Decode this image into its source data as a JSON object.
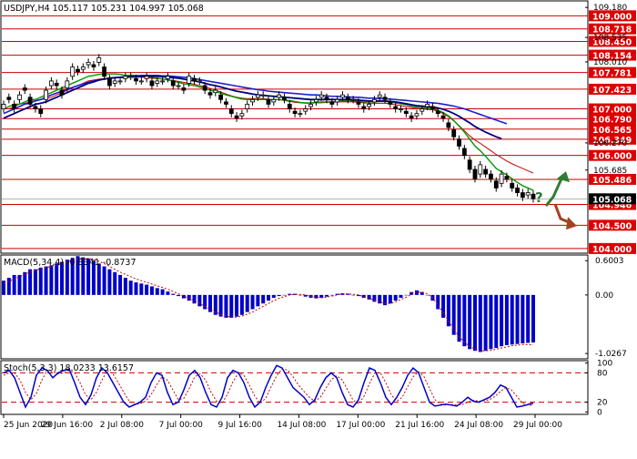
{
  "chart_data": {
    "type": "candlestick",
    "symbol_line": "USDJPY,H4  105.117 105.231 104.997 105.068",
    "main": {
      "ylim": [
        103.9,
        109.3
      ],
      "current_price": 105.068,
      "current_price_label": "105.068",
      "levels": [
        109.0,
        108.718,
        108.45,
        108.154,
        107.781,
        107.423,
        107.0,
        106.79,
        106.565,
        106.349,
        106.0,
        105.486,
        104.946,
        104.5,
        104.0
      ],
      "level_labels": [
        "109.000",
        "108.718",
        "108.450",
        "108.154",
        "107.781",
        "107.423",
        "107.000",
        "106.790",
        "106.565",
        "106.349",
        "106.000",
        "105.486",
        "104.946",
        "104.500",
        "104.000"
      ],
      "tick_values": [
        109.18,
        108.535,
        108.01,
        106.27,
        105.685
      ],
      "tick_labels": [
        "109.180",
        "108.535",
        "108.010",
        "106.270",
        "105.685"
      ],
      "close": [
        107.1,
        107.2,
        107.0,
        107.3,
        107.4,
        107.1,
        107.0,
        106.9,
        107.4,
        107.6,
        107.5,
        107.3,
        107.6,
        107.9,
        107.8,
        107.9,
        108.0,
        107.9,
        108.1,
        107.7,
        107.5,
        107.6,
        107.6,
        107.7,
        107.7,
        107.6,
        107.6,
        107.7,
        107.5,
        107.6,
        107.6,
        107.7,
        107.5,
        107.5,
        107.4,
        107.7,
        107.6,
        107.6,
        107.4,
        107.3,
        107.4,
        107.2,
        107.1,
        106.9,
        106.8,
        106.9,
        107.1,
        107.2,
        107.3,
        107.3,
        107.1,
        107.2,
        107.3,
        107.2,
        107.0,
        106.9,
        106.9,
        107.0,
        107.1,
        107.2,
        107.3,
        107.2,
        107.1,
        107.2,
        107.3,
        107.2,
        107.2,
        107.1,
        107.0,
        107.1,
        107.2,
        107.3,
        107.2,
        107.1,
        107.0,
        107.0,
        106.9,
        106.8,
        106.9,
        107.0,
        107.1,
        107.0,
        106.9,
        106.8,
        106.6,
        106.4,
        106.2,
        106.0,
        105.7,
        105.5,
        105.8,
        105.6,
        105.5,
        105.3,
        105.6,
        105.5,
        105.3,
        105.2,
        105.1,
        105.2,
        105.068
      ],
      "open_offsets": [
        -0.1,
        0.05,
        0.1,
        -0.1,
        0.05,
        0.15,
        0.05,
        0.1,
        -0.2,
        -0.1,
        0.05,
        0.1,
        -0.15,
        -0.2,
        0.05,
        -0.05,
        -0.05,
        0.05,
        -0.1,
        0.2,
        0.15,
        -0.05,
        0.0,
        -0.05,
        0.0,
        0.05,
        0.0,
        -0.05,
        0.1,
        -0.05,
        0.0,
        -0.05,
        0.1,
        0.0,
        0.05,
        -0.15,
        0.05,
        0.0,
        0.1,
        0.05,
        -0.05,
        0.1,
        0.05,
        0.1,
        0.05,
        -0.05,
        -0.1,
        -0.05,
        -0.05,
        0.0,
        0.1,
        -0.05,
        -0.05,
        0.05,
        0.1,
        0.05,
        0.0,
        -0.05,
        -0.05,
        -0.05,
        -0.05,
        0.05,
        0.05,
        -0.05,
        -0.05,
        0.05,
        0.0,
        0.05,
        0.05,
        -0.05,
        -0.05,
        -0.05,
        0.05,
        0.05,
        0.05,
        0.0,
        0.05,
        0.05,
        -0.05,
        -0.05,
        -0.05,
        0.05,
        0.05,
        0.05,
        0.1,
        0.15,
        0.15,
        0.15,
        0.2,
        0.2,
        -0.2,
        0.1,
        0.1,
        0.15,
        -0.2,
        0.05,
        0.1,
        0.1,
        0.1,
        -0.05,
        0.1
      ],
      "ma_fast": [
        107.0,
        107.05,
        107.1,
        107.1,
        107.15,
        107.2,
        107.2,
        107.25,
        107.3,
        107.35,
        107.4,
        107.45,
        107.5,
        107.55,
        107.6,
        107.65,
        107.7,
        107.72,
        107.74,
        107.75,
        107.75,
        107.75,
        107.74,
        107.72,
        107.72,
        107.72,
        107.71,
        107.7,
        107.68,
        107.66,
        107.64,
        107.62,
        107.6,
        107.57,
        107.54,
        107.52,
        107.5,
        107.47,
        107.44,
        107.4,
        107.37,
        107.34,
        107.3,
        107.27,
        107.24,
        107.21,
        107.2,
        107.2,
        107.2,
        107.2,
        107.2,
        107.2,
        107.2,
        107.19,
        107.18,
        107.16,
        107.14,
        107.13,
        107.13,
        107.14,
        107.15,
        107.15,
        107.15,
        107.16,
        107.17,
        107.17,
        107.17,
        107.16,
        107.15,
        107.15,
        107.15,
        107.16,
        107.16,
        107.15,
        107.13,
        107.11,
        107.09,
        107.06,
        107.04,
        107.03,
        107.02,
        107.0,
        106.97,
        106.92,
        106.85,
        106.75,
        106.63,
        106.5,
        106.35,
        106.2,
        106.1,
        105.98,
        105.85,
        105.72,
        105.65,
        105.58,
        105.5,
        105.42,
        105.35,
        105.3,
        105.25
      ],
      "ma_mid": [
        106.8,
        106.85,
        106.9,
        106.95,
        107.0,
        107.05,
        107.1,
        107.12,
        107.15,
        107.2,
        107.25,
        107.3,
        107.35,
        107.4,
        107.45,
        107.5,
        107.55,
        107.58,
        107.62,
        107.64,
        107.66,
        107.67,
        107.68,
        107.68,
        107.69,
        107.69,
        107.7,
        107.7,
        107.7,
        107.7,
        107.69,
        107.68,
        107.67,
        107.66,
        107.64,
        107.62,
        107.6,
        107.58,
        107.55,
        107.52,
        107.5,
        107.47,
        107.44,
        107.41,
        107.38,
        107.36,
        107.34,
        107.32,
        107.3,
        107.29,
        107.28,
        107.27,
        107.26,
        107.25,
        107.24,
        107.23,
        107.22,
        107.21,
        107.2,
        107.2,
        107.2,
        107.2,
        107.2,
        107.2,
        107.2,
        107.2,
        107.2,
        107.19,
        107.18,
        107.17,
        107.17,
        107.17,
        107.17,
        107.16,
        107.15,
        107.13,
        107.11,
        107.09,
        107.07,
        107.06,
        107.05,
        107.04,
        107.02,
        106.99,
        106.95,
        106.9,
        106.84,
        106.77,
        106.7,
        106.62,
        106.56,
        106.5,
        106.45,
        106.4,
        106.36
      ],
      "ma_slow": [
        106.9,
        106.95,
        107.0,
        107.05,
        107.1,
        107.13,
        107.17,
        107.2,
        107.25,
        107.3,
        107.34,
        107.38,
        107.42,
        107.46,
        107.5,
        107.54,
        107.57,
        107.6,
        107.62,
        107.64,
        107.66,
        107.67,
        107.68,
        107.69,
        107.7,
        107.71,
        107.72,
        107.72,
        107.72,
        107.72,
        107.71,
        107.71,
        107.7,
        107.69,
        107.68,
        107.67,
        107.65,
        107.63,
        107.61,
        107.59,
        107.57,
        107.55,
        107.53,
        107.51,
        107.49,
        107.47,
        107.45,
        107.43,
        107.41,
        107.4,
        107.38,
        107.37,
        107.36,
        107.35,
        107.34,
        107.33,
        107.32,
        107.31,
        107.3,
        107.3,
        107.29,
        107.28,
        107.27,
        107.27,
        107.26,
        107.26,
        107.25,
        107.25,
        107.24,
        107.23,
        107.23,
        107.22,
        107.22,
        107.21,
        107.2,
        107.19,
        107.18,
        107.17,
        107.16,
        107.15,
        107.14,
        107.13,
        107.12,
        107.1,
        107.08,
        107.06,
        107.03,
        107.0,
        106.96,
        106.92,
        106.88,
        106.84,
        106.8,
        106.76,
        106.72,
        106.68
      ],
      "ma_red": [
        107.0,
        107.0,
        107.05,
        107.1,
        107.12,
        107.15,
        107.18,
        107.2,
        107.22,
        107.25,
        107.3,
        107.35,
        107.4,
        107.45,
        107.5,
        107.55,
        107.6,
        107.62,
        107.64,
        107.65,
        107.66,
        107.66,
        107.67,
        107.67,
        107.68,
        107.68,
        107.68,
        107.67,
        107.66,
        107.65,
        107.64,
        107.63,
        107.61,
        107.59,
        107.57,
        107.55,
        107.53,
        107.5,
        107.47,
        107.44,
        107.4,
        107.36,
        107.32,
        107.28,
        107.25,
        107.23,
        107.22,
        107.22,
        107.22,
        107.22,
        107.21,
        107.2,
        107.2,
        107.18,
        107.16,
        107.14,
        107.13,
        107.12,
        107.12,
        107.13,
        107.13,
        107.14,
        107.14,
        107.15,
        107.15,
        107.15,
        107.15,
        107.14,
        107.13,
        107.12,
        107.12,
        107.12,
        107.12,
        107.11,
        107.09,
        107.07,
        107.05,
        107.03,
        107.01,
        107.0,
        106.99,
        106.98,
        106.95,
        106.9,
        106.83,
        106.74,
        106.64,
        106.53,
        106.42,
        106.33,
        106.26,
        106.18,
        106.1,
        106.02,
        105.95,
        105.88,
        105.82,
        105.77,
        105.72,
        105.67,
        105.62
      ]
    },
    "macd": {
      "label": "MACD(5,34,4) -0.8341 -0.8737",
      "ylim": [
        -1.12,
        0.7
      ],
      "tick_values": [
        0.6003,
        0.0,
        -1.0267
      ],
      "tick_labels": [
        "0.6003",
        "0.00",
        "-1.0267"
      ],
      "hist": [
        0.25,
        0.3,
        0.35,
        0.35,
        0.4,
        0.45,
        0.45,
        0.48,
        0.5,
        0.52,
        0.55,
        0.58,
        0.62,
        0.65,
        0.68,
        0.66,
        0.64,
        0.6,
        0.55,
        0.5,
        0.45,
        0.4,
        0.35,
        0.3,
        0.25,
        0.22,
        0.2,
        0.18,
        0.15,
        0.12,
        0.1,
        0.06,
        0.02,
        -0.02,
        -0.06,
        -0.1,
        -0.15,
        -0.2,
        -0.25,
        -0.3,
        -0.35,
        -0.38,
        -0.4,
        -0.4,
        -0.38,
        -0.35,
        -0.3,
        -0.25,
        -0.2,
        -0.15,
        -0.1,
        -0.05,
        -0.02,
        0.0,
        0.02,
        0.02,
        0.0,
        -0.03,
        -0.05,
        -0.06,
        -0.05,
        -0.03,
        0.0,
        0.02,
        0.03,
        0.02,
        0.0,
        -0.02,
        -0.05,
        -0.08,
        -0.12,
        -0.15,
        -0.18,
        -0.15,
        -0.1,
        -0.05,
        0.0,
        0.05,
        0.08,
        0.05,
        0.0,
        -0.1,
        -0.25,
        -0.4,
        -0.55,
        -0.7,
        -0.82,
        -0.9,
        -0.95,
        -0.98,
        -1.0,
        -0.98,
        -0.95,
        -0.93,
        -0.9,
        -0.88,
        -0.87,
        -0.86,
        -0.85,
        -0.84,
        -0.8341
      ],
      "signal": [
        0.2,
        0.24,
        0.28,
        0.32,
        0.36,
        0.4,
        0.43,
        0.46,
        0.48,
        0.5,
        0.52,
        0.55,
        0.58,
        0.61,
        0.63,
        0.64,
        0.64,
        0.62,
        0.59,
        0.55,
        0.5,
        0.45,
        0.4,
        0.36,
        0.32,
        0.28,
        0.25,
        0.22,
        0.19,
        0.16,
        0.13,
        0.1,
        0.06,
        0.02,
        -0.02,
        -0.06,
        -0.1,
        -0.15,
        -0.2,
        -0.25,
        -0.3,
        -0.34,
        -0.37,
        -0.39,
        -0.39,
        -0.37,
        -0.34,
        -0.3,
        -0.25,
        -0.2,
        -0.15,
        -0.1,
        -0.06,
        -0.03,
        0.0,
        0.01,
        0.01,
        0.0,
        -0.02,
        -0.04,
        -0.05,
        -0.04,
        -0.02,
        0.0,
        0.02,
        0.02,
        0.01,
        0.0,
        -0.03,
        -0.06,
        -0.09,
        -0.12,
        -0.15,
        -0.15,
        -0.12,
        -0.08,
        -0.04,
        0.01,
        0.05,
        0.05,
        0.02,
        -0.05,
        -0.17,
        -0.31,
        -0.46,
        -0.6,
        -0.73,
        -0.83,
        -0.9,
        -0.95,
        -0.98,
        -0.98,
        -0.97,
        -0.95,
        -0.93,
        -0.91,
        -0.89,
        -0.88,
        -0.87,
        -0.87,
        -0.8737
      ]
    },
    "stoch": {
      "label": "Stoch(5,3,3) 18.0233 13.6157",
      "ylim": [
        -5,
        105
      ],
      "tick_values": [
        100,
        80,
        20,
        0
      ],
      "tick_labels": [
        "100",
        "80",
        "20",
        "0"
      ],
      "dashed_levels": [
        80,
        20
      ],
      "k": [
        80,
        85,
        70,
        40,
        10,
        30,
        75,
        90,
        85,
        70,
        80,
        85,
        88,
        60,
        30,
        15,
        35,
        70,
        90,
        80,
        60,
        40,
        20,
        10,
        15,
        20,
        30,
        60,
        80,
        75,
        40,
        15,
        20,
        45,
        75,
        85,
        70,
        40,
        15,
        10,
        30,
        70,
        85,
        80,
        60,
        30,
        10,
        20,
        50,
        75,
        95,
        90,
        70,
        50,
        40,
        30,
        15,
        25,
        50,
        70,
        80,
        70,
        40,
        15,
        10,
        25,
        60,
        90,
        85,
        60,
        30,
        15,
        30,
        50,
        75,
        90,
        80,
        50,
        20,
        12,
        14,
        16,
        14,
        12,
        20,
        30,
        22,
        20,
        25,
        30,
        40,
        55,
        50,
        30,
        10,
        12,
        15,
        18.0233
      ],
      "d": [
        75,
        80,
        80,
        65,
        40,
        25,
        38,
        65,
        85,
        82,
        78,
        80,
        85,
        80,
        60,
        35,
        25,
        40,
        65,
        85,
        78,
        60,
        40,
        22,
        15,
        17,
        22,
        35,
        55,
        72,
        65,
        45,
        25,
        28,
        48,
        72,
        78,
        65,
        40,
        22,
        18,
        36,
        62,
        80,
        75,
        55,
        32,
        18,
        28,
        52,
        74,
        88,
        86,
        72,
        55,
        42,
        30,
        22,
        30,
        48,
        66,
        74,
        66,
        45,
        24,
        16,
        32,
        58,
        80,
        80,
        60,
        35,
        22,
        30,
        52,
        72,
        82,
        72,
        48,
        25,
        16,
        14,
        15,
        14,
        15,
        20,
        24,
        22,
        23,
        25,
        32,
        42,
        50,
        45,
        32,
        18,
        14,
        13.6157
      ]
    },
    "x_ticks": [
      "25 Jun 2020",
      "29 Jun 16:00",
      "2 Jul 08:00",
      "7 Jul 00:00",
      "9 Jul 16:00",
      "14 Jul 08:00",
      "17 Jul 00:00",
      "21 Jul 16:00",
      "24 Jul 08:00",
      "29 Jul 00:00"
    ],
    "annotation": {
      "text": "?",
      "arrow_up_color": "#2e7d32",
      "arrow_down_color": "#a0431f"
    },
    "colors": {
      "level_line": "#cc0000",
      "label_bg": "#dd0000",
      "label_text": "#ffffff",
      "current_bg": "#000000",
      "candle": "#000000",
      "ma_fast": "#009900",
      "ma_mid": "#000080",
      "ma_slow": "#2020cc",
      "ma_red": "#cc0000",
      "macd_bar": "#0000cc",
      "macd_signal": "#cc0000",
      "stoch_k": "#0000cc",
      "stoch_d": "#cc0000"
    }
  }
}
